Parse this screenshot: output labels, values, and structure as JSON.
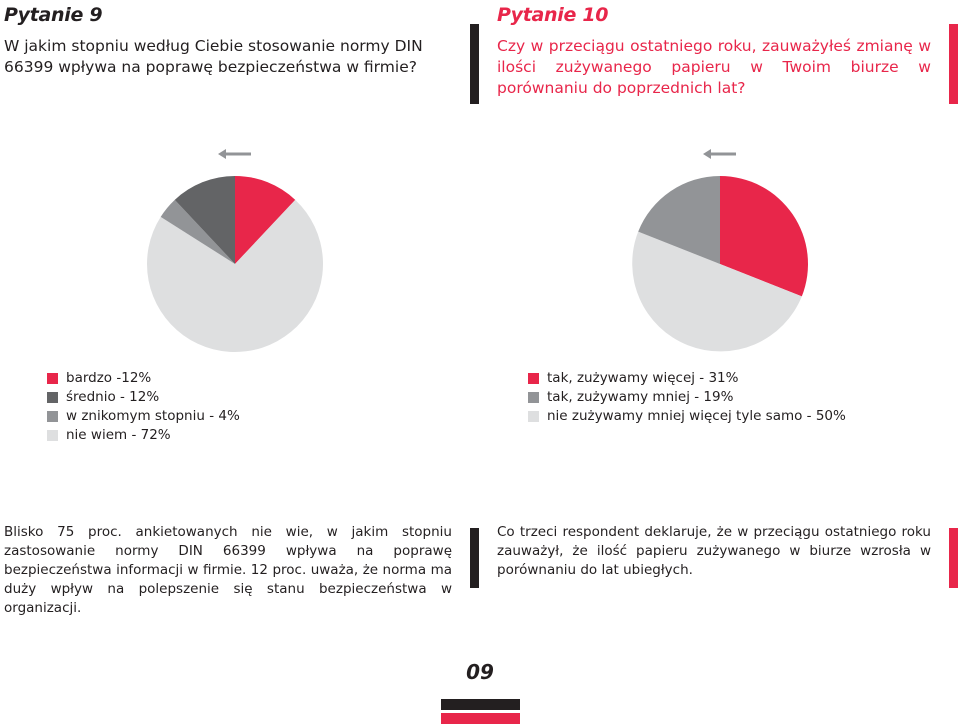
{
  "q9": {
    "title": "Pytanie 9",
    "text": "W jakim stopniu według Ciebie stosowanie   normy DIN 66399 wpływa na poprawę bezpieczeństwa w firmie?",
    "summary": "Blisko 75 proc. ankietowanych nie wie, w jakim stopniu zastosowanie normy DIN 66399 wpływa na poprawę bezpieczeństwa informacji w firmie. 12 proc. uważa, że norma ma duży wpływ na polepszenie się stanu bezpieczeństwa w organizacji."
  },
  "q10": {
    "title": "Pytanie 10",
    "text": "Czy w przeciągu ostatniego roku, zauważyłeś zmianę w ilości zużywanego papieru w Twoim biurze w porównaniu do poprzednich lat?",
    "summary": "Co trzeci respondent deklaruje, że w przeciągu ostatniego roku zauważył, że ilość papieru zużywanego w biurze wzrosła w porównaniu do lat ubiegłych."
  },
  "page_number": "09",
  "colors": {
    "red": "#e8264a",
    "dark_gray": "#636466",
    "mid_gray": "#929497",
    "light_gray": "#dedfe0",
    "black": "#231f20"
  },
  "chart_data": [
    {
      "type": "pie",
      "title": "",
      "start_angle_deg": 0,
      "direction": "clockwise",
      "slices": [
        {
          "label": "bardzo -12%",
          "value": 12,
          "color": "#e8264a"
        },
        {
          "label": "nie wiem - 72%",
          "value": 72,
          "color": "#dedfe0"
        },
        {
          "label": "w znikomym stopniu - 4%",
          "value": 4,
          "color": "#929497"
        },
        {
          "label": "średnio - 12%",
          "value": 12,
          "color": "#636466"
        }
      ],
      "legend": [
        {
          "label": "bardzo -12%",
          "color": "#e8264a"
        },
        {
          "label": "średnio - 12%",
          "color": "#636466"
        },
        {
          "label": "w znikomym stopniu - 4%",
          "color": "#929497"
        },
        {
          "label": "nie wiem - 72%",
          "color": "#dedfe0"
        }
      ],
      "legend_position": "bottom-left"
    },
    {
      "type": "pie",
      "title": "",
      "start_angle_deg": 0,
      "direction": "clockwise",
      "slices": [
        {
          "label": "tak, zużywamy więcej - 31%",
          "value": 31,
          "color": "#e8264a"
        },
        {
          "label": "nie zużywamy mniej więcej tyle samo - 50%",
          "value": 50,
          "color": "#dedfe0"
        },
        {
          "label": "tak, zużywamy mniej - 19%",
          "value": 19,
          "color": "#929497"
        }
      ],
      "legend": [
        {
          "label": "tak, zużywamy więcej - 31%",
          "color": "#e8264a"
        },
        {
          "label": "tak, zużywamy mniej - 19%",
          "color": "#929497"
        },
        {
          "label": "nie zużywamy mniej więcej tyle samo - 50%",
          "color": "#dedfe0"
        }
      ],
      "legend_position": "bottom-left"
    }
  ]
}
